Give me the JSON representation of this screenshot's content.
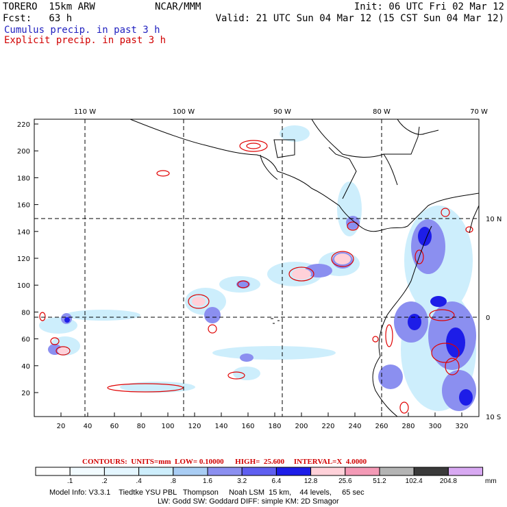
{
  "header": {
    "line1_left": "TORERO  15km ARW",
    "line1_mid": "NCAR/MMM",
    "line1_right": "Init: 06 UTC Fri 02 Mar 12",
    "line2_left": "Fcst:   63 h",
    "line2_right": "Valid: 21 UTC Sun 04 Mar 12 (15 CST Sun 04 Mar 12)",
    "line3": "Cumulus precip. in past 3 h",
    "line4": "Explicit precip. in past 3 h"
  },
  "map": {
    "lon_labels": [
      "110 W",
      "100 W",
      "90 W",
      "80 W",
      "70 W"
    ],
    "lat_labels": [
      "10 N",
      "0",
      "10 S"
    ],
    "y_ticks": [
      "220",
      "200",
      "180",
      "160",
      "140",
      "120",
      "100",
      "80",
      "60",
      "40",
      "20"
    ],
    "x_ticks": [
      "20",
      "40",
      "60",
      "80",
      "100",
      "120",
      "140",
      "160",
      "180",
      "200",
      "220",
      "240",
      "260",
      "280",
      "300",
      "320"
    ],
    "colors": {
      "frame": "#000000",
      "grid": "#000000",
      "coast": "#000000",
      "explicit": "#e00000"
    }
  },
  "contours": {
    "text": "CONTOURS:  UNITS=mm  LOW= 0.10000      HIGH=  25.600     INTERVAL=X  4.0000"
  },
  "colorbar": {
    "labels": [
      ".1",
      ".2",
      ".4",
      ".8",
      "1.6",
      "3.2",
      "6.4",
      "12.8",
      "25.6",
      "51.2",
      "102.4",
      "204.8"
    ],
    "colors": [
      "#ffffff",
      "#f2fbff",
      "#e4f6ff",
      "#cdeefc",
      "#a9cdf4",
      "#8b8ff0",
      "#5f5ff0",
      "#1d1de8",
      "#ffd1d9",
      "#f49ab6",
      "#b4b4b4",
      "#3a3a3a",
      "#d8a9f2"
    ],
    "unit": "mm"
  },
  "footer": {
    "line1": "Model Info: V3.3.1    Tiedtke YSU PBL   Thompson     Noah LSM  15 km,    44 levels,     65 sec",
    "line2": "LW: Godd SW: Goddard DIFF: simple KM: 2D Smagor"
  }
}
